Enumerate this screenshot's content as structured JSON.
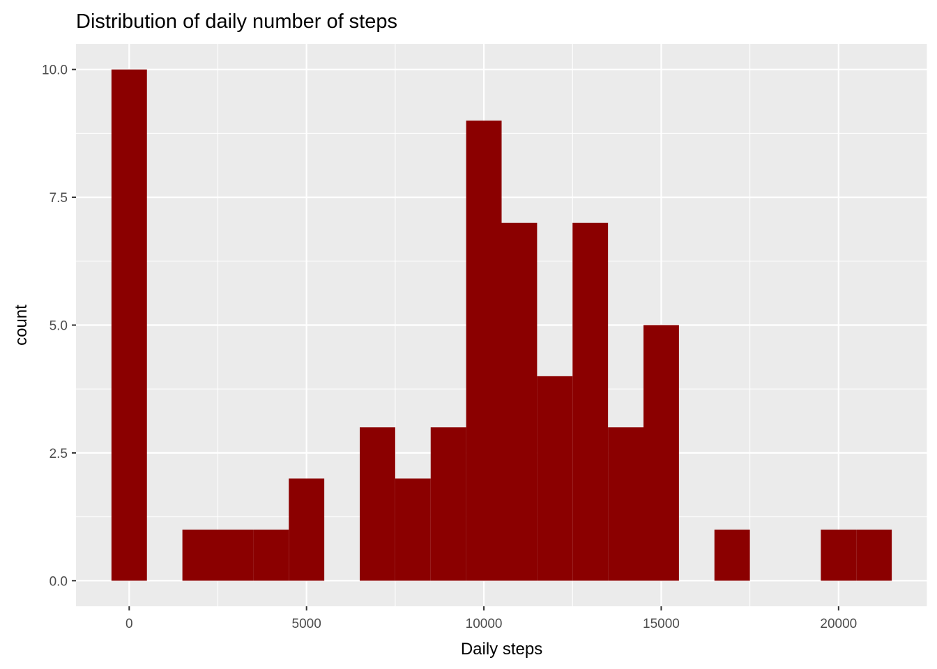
{
  "chart_data": {
    "type": "bar",
    "subtype": "histogram",
    "title": "Distribution of daily number of steps",
    "xlabel": "Daily steps",
    "ylabel": "count",
    "bin_width": 1000,
    "bins": [
      {
        "center": 0,
        "count": 10
      },
      {
        "center": 2000,
        "count": 1
      },
      {
        "center": 3000,
        "count": 1
      },
      {
        "center": 4000,
        "count": 1
      },
      {
        "center": 5000,
        "count": 2
      },
      {
        "center": 7000,
        "count": 3
      },
      {
        "center": 8000,
        "count": 2
      },
      {
        "center": 9000,
        "count": 3
      },
      {
        "center": 10000,
        "count": 9
      },
      {
        "center": 11000,
        "count": 7
      },
      {
        "center": 12000,
        "count": 4
      },
      {
        "center": 13000,
        "count": 7
      },
      {
        "center": 14000,
        "count": 3
      },
      {
        "center": 15000,
        "count": 5
      },
      {
        "center": 17000,
        "count": 1
      },
      {
        "center": 20000,
        "count": 1
      },
      {
        "center": 21000,
        "count": 1
      }
    ],
    "xlim": [
      -1500,
      22500
    ],
    "ylim": [
      -0.5,
      10.5
    ],
    "x_ticks": [
      0,
      5000,
      10000,
      15000,
      20000
    ],
    "x_tick_labels": [
      "0",
      "5000",
      "10000",
      "15000",
      "20000"
    ],
    "y_ticks": [
      0,
      2.5,
      5,
      7.5,
      10
    ],
    "y_tick_labels": [
      "0.0",
      "2.5",
      "5.0",
      "7.5",
      "10.0"
    ],
    "grid": true,
    "legend": "none",
    "colors": {
      "bar_fill": "#8B0000",
      "panel_background": "#EBEBEB",
      "grid": "#FFFFFF"
    }
  }
}
